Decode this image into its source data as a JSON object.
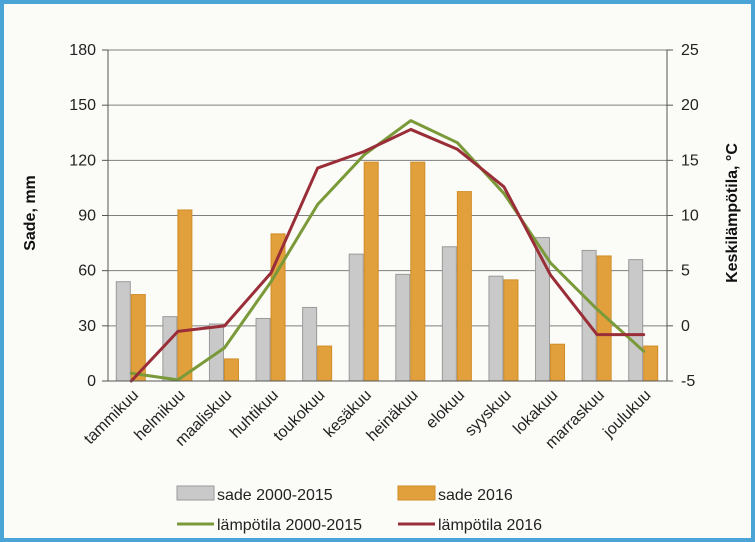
{
  "chart_data": {
    "type": "bar",
    "categories": [
      "tammikuu",
      "helmikuu",
      "maaliskuu",
      "huhtikuu",
      "toukokuu",
      "kesäkuu",
      "heinäkuu",
      "elokuu",
      "syyskuu",
      "lokakuu",
      "marraskuu",
      "joulukuu"
    ],
    "ylabel": "Sade, mm",
    "y2label": "Keskilämpötila, °C",
    "ylim": [
      0,
      180
    ],
    "y2lim": [
      -5,
      25
    ],
    "yticks": [
      "0",
      "30",
      "60",
      "90",
      "120",
      "150",
      "180"
    ],
    "y2ticks": [
      "-5",
      "0",
      "5",
      "10",
      "15",
      "20",
      "25"
    ],
    "grid": "horizontal",
    "legend_position": "bottom",
    "series": [
      {
        "name": "sade 2000-2015",
        "type": "bar",
        "axis": "left",
        "color": "#c9c9c9",
        "values": [
          54,
          35,
          31,
          34,
          40,
          69,
          58,
          73,
          57,
          78,
          71,
          66
        ]
      },
      {
        "name": "sade 2016",
        "type": "bar",
        "axis": "left",
        "color": "#e2a03c",
        "values": [
          47,
          93,
          12,
          80,
          19,
          119,
          119,
          103,
          55,
          20,
          68,
          19
        ]
      },
      {
        "name": "lämpötila 2000-2015",
        "type": "line",
        "axis": "right",
        "color": "#7a9a3a",
        "values": [
          -4.3,
          -4.9,
          -2.0,
          4.0,
          11.0,
          15.5,
          18.6,
          16.6,
          12.0,
          5.7,
          1.5,
          -2.3
        ]
      },
      {
        "name": "lämpötila 2016",
        "type": "line",
        "axis": "right",
        "color": "#9a2e38",
        "values": [
          -5.0,
          -0.5,
          0.0,
          4.8,
          14.3,
          15.8,
          17.8,
          16.0,
          12.6,
          4.6,
          -0.8,
          -0.8
        ]
      }
    ]
  }
}
